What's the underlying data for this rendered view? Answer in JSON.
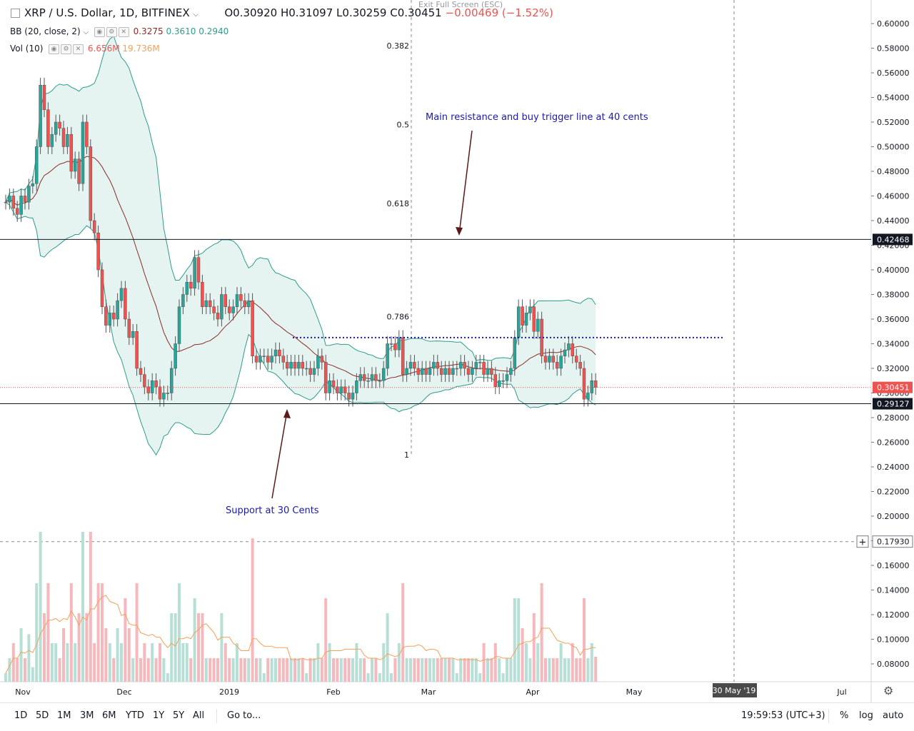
{
  "header": {
    "symbol": "XRP / U.S. Dollar, 1D, BITFINEX",
    "open": "O0.30920",
    "high": "H0.31097",
    "low": "L0.30259",
    "close": "C0.30451",
    "change": "−0.00469 (−1.52%)",
    "exit_fullscreen": "Exit Full Screen (ESC)"
  },
  "indicators": {
    "bb": {
      "label": "BB (20, close, 2)",
      "basis": "0.3275",
      "upper": "0.3610",
      "lower": "0.2940"
    },
    "vol": {
      "label": "Vol (10)",
      "value": "6.656M",
      "ma": "19.736M"
    }
  },
  "colors": {
    "up": "#26a69a",
    "down": "#ef5350",
    "up_vol": "#b7dfd6",
    "down_vol": "#f5b8bc",
    "bb_line": "#2e9b8e",
    "bb_fill": "#e6f4f1",
    "basis": "#8c2a2a",
    "vol_ma": "#f5a05a",
    "annotation": "#1a1aa8"
  },
  "chart_data": {
    "type": "candlestick",
    "y_axis": {
      "ticks": [
        "0.60000",
        "0.58000",
        "0.56000",
        "0.54000",
        "0.52000",
        "0.50000",
        "0.48000",
        "0.46000",
        "0.44000",
        "0.42000",
        "0.40000",
        "0.38000",
        "0.36000",
        "0.34000",
        "0.32000",
        "0.30000",
        "0.28000",
        "0.26000",
        "0.24000",
        "0.22000",
        "0.20000",
        "0.18000",
        "0.16000",
        "0.14000",
        "0.12000",
        "0.10000",
        "0.08000"
      ]
    },
    "x_axis": {
      "ticks": [
        "Nov",
        "Dec",
        "2019",
        "Feb",
        "Mar",
        "Apr",
        "May",
        "30 May '19",
        "Jul"
      ]
    },
    "price_labels": [
      {
        "value": 0.42468,
        "text": "0.42468",
        "style": "dark"
      },
      {
        "value": 0.30451,
        "text": "0.30451",
        "style": "red"
      },
      {
        "value": 0.29127,
        "text": "0.29127",
        "style": "dark"
      },
      {
        "value": 0.1793,
        "text": "0.17930",
        "style": "crosshair"
      }
    ],
    "fib_levels": [
      {
        "text": "0.382",
        "price": 0.582
      },
      {
        "text": "0.5",
        "price": 0.518
      },
      {
        "text": "0.618",
        "price": 0.454
      },
      {
        "text": "0.786",
        "price": 0.362
      },
      {
        "text": "1",
        "price": 0.25
      }
    ],
    "annotations": [
      {
        "text": "Main resistance and buy trigger line at 40 cents"
      },
      {
        "text": "Support at 30 Cents"
      }
    ],
    "horizontal_lines": [
      {
        "price": 0.42468,
        "style": "solid"
      },
      {
        "price": 0.29127,
        "style": "solid"
      },
      {
        "price": 0.345,
        "style": "dotted-blue"
      }
    ],
    "closes": [
      0.455,
      0.46,
      0.45,
      0.445,
      0.46,
      0.455,
      0.468,
      0.47,
      0.5,
      0.55,
      0.53,
      0.5,
      0.51,
      0.52,
      0.515,
      0.5,
      0.51,
      0.48,
      0.49,
      0.47,
      0.52,
      0.5,
      0.44,
      0.43,
      0.4,
      0.37,
      0.355,
      0.365,
      0.36,
      0.375,
      0.385,
      0.36,
      0.345,
      0.35,
      0.32,
      0.315,
      0.305,
      0.3,
      0.31,
      0.305,
      0.295,
      0.3,
      0.3,
      0.32,
      0.34,
      0.37,
      0.38,
      0.39,
      0.385,
      0.41,
      0.39,
      0.37,
      0.375,
      0.37,
      0.365,
      0.36,
      0.38,
      0.37,
      0.365,
      0.37,
      0.38,
      0.375,
      0.37,
      0.375,
      0.33,
      0.325,
      0.33,
      0.33,
      0.325,
      0.33,
      0.335,
      0.33,
      0.325,
      0.32,
      0.325,
      0.32,
      0.325,
      0.32,
      0.32,
      0.315,
      0.32,
      0.33,
      0.325,
      0.3,
      0.31,
      0.305,
      0.3,
      0.305,
      0.3,
      0.295,
      0.3,
      0.31,
      0.315,
      0.31,
      0.31,
      0.315,
      0.31,
      0.31,
      0.32,
      0.34,
      0.34,
      0.335,
      0.345,
      0.315,
      0.32,
      0.325,
      0.32,
      0.315,
      0.32,
      0.315,
      0.32,
      0.325,
      0.32,
      0.315,
      0.32,
      0.315,
      0.32,
      0.32,
      0.325,
      0.32,
      0.315,
      0.32,
      0.325,
      0.325,
      0.315,
      0.32,
      0.315,
      0.305,
      0.31,
      0.31,
      0.315,
      0.32,
      0.345,
      0.37,
      0.355,
      0.365,
      0.37,
      0.35,
      0.36,
      0.33,
      0.325,
      0.33,
      0.325,
      0.32,
      0.33,
      0.335,
      0.34,
      0.33,
      0.325,
      0.32,
      0.295,
      0.3,
      0.31,
      0.3045
    ]
  },
  "timeframes": [
    "1D",
    "5D",
    "1M",
    "3M",
    "6M",
    "YTD",
    "1Y",
    "5Y",
    "All"
  ],
  "goto_label": "Go to...",
  "clock": "19:59:53 (UTC+3)",
  "scale_buttons": [
    "%",
    "log",
    "auto"
  ]
}
